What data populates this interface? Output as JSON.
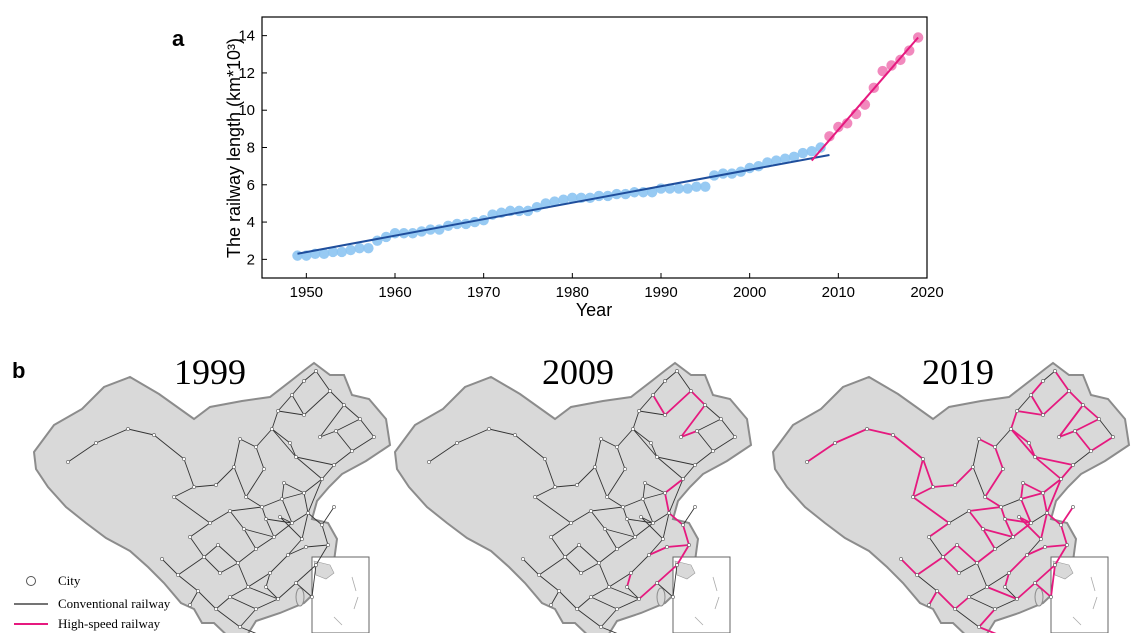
{
  "panel_a_label": "a",
  "panel_b_label": "b",
  "chart_data": {
    "type": "scatter",
    "xlabel": "Year",
    "ylabel": "The railway length  (km*10³)",
    "xlim": [
      1945,
      2020
    ],
    "ylim": [
      1,
      15
    ],
    "xticks": [
      1950,
      1960,
      1970,
      1980,
      1990,
      2000,
      2010,
      2020
    ],
    "yticks": [
      2,
      4,
      6,
      8,
      10,
      12,
      14
    ],
    "grid": false,
    "series": [
      {
        "color": "#8cc4f2",
        "points": [
          [
            1949,
            2.2
          ],
          [
            1950,
            2.2
          ],
          [
            1951,
            2.3
          ],
          [
            1952,
            2.3
          ],
          [
            1953,
            2.4
          ],
          [
            1954,
            2.4
          ],
          [
            1955,
            2.5
          ],
          [
            1956,
            2.6
          ],
          [
            1957,
            2.6
          ],
          [
            1958,
            3.0
          ],
          [
            1959,
            3.2
          ],
          [
            1960,
            3.4
          ],
          [
            1961,
            3.4
          ],
          [
            1962,
            3.4
          ],
          [
            1963,
            3.5
          ],
          [
            1964,
            3.6
          ],
          [
            1965,
            3.6
          ],
          [
            1966,
            3.8
          ],
          [
            1967,
            3.9
          ],
          [
            1968,
            3.9
          ],
          [
            1969,
            4.0
          ],
          [
            1970,
            4.1
          ],
          [
            1971,
            4.4
          ],
          [
            1972,
            4.5
          ],
          [
            1973,
            4.6
          ],
          [
            1974,
            4.6
          ],
          [
            1975,
            4.6
          ],
          [
            1976,
            4.8
          ],
          [
            1977,
            5.0
          ],
          [
            1978,
            5.1
          ],
          [
            1979,
            5.2
          ],
          [
            1980,
            5.3
          ],
          [
            1981,
            5.3
          ],
          [
            1982,
            5.3
          ],
          [
            1983,
            5.4
          ],
          [
            1984,
            5.4
          ],
          [
            1985,
            5.5
          ],
          [
            1986,
            5.5
          ],
          [
            1987,
            5.6
          ],
          [
            1988,
            5.6
          ],
          [
            1989,
            5.6
          ],
          [
            1990,
            5.8
          ],
          [
            1991,
            5.8
          ],
          [
            1992,
            5.8
          ],
          [
            1993,
            5.8
          ],
          [
            1994,
            5.9
          ],
          [
            1995,
            5.9
          ],
          [
            1996,
            6.5
          ],
          [
            1997,
            6.6
          ],
          [
            1998,
            6.6
          ],
          [
            1999,
            6.7
          ],
          [
            2000,
            6.9
          ],
          [
            2001,
            7.0
          ],
          [
            2002,
            7.2
          ],
          [
            2003,
            7.3
          ],
          [
            2004,
            7.4
          ],
          [
            2005,
            7.5
          ],
          [
            2006,
            7.7
          ],
          [
            2007,
            7.8
          ],
          [
            2008,
            8.0
          ]
        ],
        "fit": [
          [
            1949,
            2.3
          ],
          [
            2009,
            7.6
          ]
        ],
        "fit_color": "#1f4e9c"
      },
      {
        "color": "#f07cb6",
        "points": [
          [
            2009,
            8.6
          ],
          [
            2010,
            9.1
          ],
          [
            2011,
            9.3
          ],
          [
            2012,
            9.8
          ],
          [
            2013,
            10.3
          ],
          [
            2014,
            11.2
          ],
          [
            2015,
            12.1
          ],
          [
            2016,
            12.4
          ],
          [
            2017,
            12.7
          ],
          [
            2018,
            13.2
          ],
          [
            2019,
            13.9
          ]
        ],
        "fit": [
          [
            2007,
            7.3
          ],
          [
            2019,
            13.9
          ]
        ],
        "fit_color": "#e6197f"
      }
    ]
  },
  "maps": [
    {
      "year": "1999",
      "hsr_level": 0
    },
    {
      "year": "2009",
      "hsr_level": 1
    },
    {
      "year": "2019",
      "hsr_level": 2
    }
  ],
  "legend": {
    "city": "City",
    "conventional": "Conventional railway",
    "highspeed": "High-speed railway"
  },
  "colors": {
    "land": "#d9d9d9",
    "border": "#8c8c8c",
    "rail": "#333333",
    "hsr": "#e6197f"
  }
}
